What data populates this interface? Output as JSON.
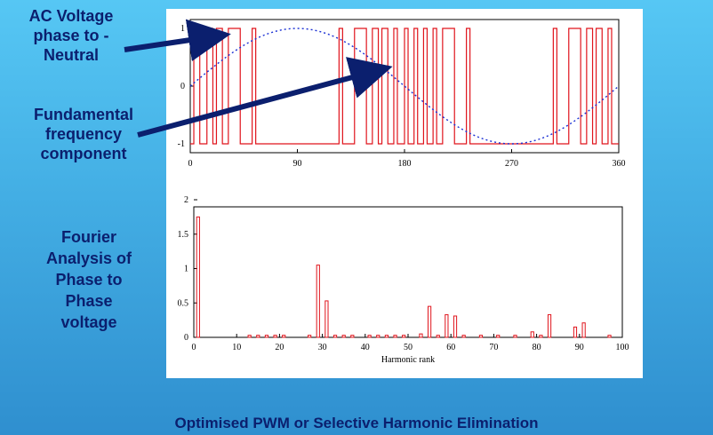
{
  "annotations": {
    "ac_voltage": [
      "AC Voltage",
      "phase to -",
      "Neutral"
    ],
    "fundamental": [
      "Fundamental",
      "frequency",
      "component"
    ],
    "fourier": [
      "Fourier",
      "Analysis of",
      "Phase to",
      "Phase",
      "voltage"
    ]
  },
  "footer": "Optimised PWM or Selective Harmonic Elimination",
  "colors": {
    "pwm": "#e0141c",
    "fundamental": "#1a2fd4",
    "arrow": "#0b1f6e",
    "bars": "#e0141c"
  },
  "chart_data": [
    {
      "type": "line",
      "title": "",
      "xlabel": "",
      "ylabel": "",
      "xlim": [
        0,
        360
      ],
      "ylim": [
        -1,
        1
      ],
      "xticks": [
        "0",
        "90",
        "180",
        "270",
        "360"
      ],
      "yticks": [
        "1",
        "0",
        "-1"
      ],
      "series": [
        {
          "style": "step",
          "color": "#e0141c",
          "transitions": [
            [
              0,
              -1
            ],
            [
              3,
              1
            ],
            [
              8,
              -1
            ],
            [
              14,
              1
            ],
            [
              19,
              -1
            ],
            [
              22,
              1
            ],
            [
              27,
              -1
            ],
            [
              32,
              1
            ],
            [
              42,
              -1
            ],
            [
              52,
              1
            ],
            [
              55,
              -1
            ],
            [
              125,
              1
            ],
            [
              128,
              -1
            ],
            [
              138,
              1
            ],
            [
              148,
              -1
            ],
            [
              153,
              1
            ],
            [
              158,
              -1
            ],
            [
              161,
              1
            ],
            [
              166,
              -1
            ],
            [
              171,
              1
            ],
            [
              174,
              -1
            ],
            [
              180,
              1
            ],
            [
              183,
              -1
            ],
            [
              188,
              1
            ],
            [
              191,
              -1
            ],
            [
              196,
              1
            ],
            [
              199,
              -1
            ],
            [
              204,
              1
            ],
            [
              207,
              -1
            ],
            [
              212,
              1
            ],
            [
              222,
              -1
            ],
            [
              232,
              1
            ],
            [
              235,
              -1
            ],
            [
              305,
              1
            ],
            [
              308,
              -1
            ],
            [
              318,
              1
            ],
            [
              328,
              -1
            ],
            [
              333,
              1
            ],
            [
              338,
              -1
            ],
            [
              341,
              1
            ],
            [
              346,
              -1
            ],
            [
              351,
              1
            ],
            [
              354,
              -1
            ],
            [
              360,
              -1
            ]
          ]
        },
        {
          "style": "dotted",
          "color": "#1a2fd4",
          "function": "sin",
          "amplitude": 1,
          "period": 360
        }
      ]
    },
    {
      "type": "bar",
      "title": "",
      "xlabel": "Harmonic rank",
      "ylabel": "",
      "xlim": [
        0,
        100
      ],
      "ylim": [
        0,
        2
      ],
      "xticks": [
        "0",
        "10",
        "20",
        "30",
        "40",
        "50",
        "60",
        "70",
        "80",
        "90",
        "100"
      ],
      "yticks": [
        "2",
        "1.5",
        "1",
        "0.5",
        "0"
      ],
      "x": [
        1,
        13,
        15,
        17,
        19,
        21,
        27,
        29,
        31,
        33,
        35,
        37,
        41,
        43,
        45,
        47,
        49,
        53,
        55,
        57,
        59,
        61,
        63,
        67,
        71,
        75,
        79,
        81,
        83,
        89,
        91,
        97
      ],
      "values": [
        1.75,
        0.03,
        0.03,
        0.03,
        0.03,
        0.03,
        0.03,
        1.05,
        0.53,
        0.03,
        0.03,
        0.03,
        0.03,
        0.03,
        0.03,
        0.03,
        0.03,
        0.05,
        0.45,
        0.03,
        0.33,
        0.31,
        0.03,
        0.03,
        0.03,
        0.03,
        0.08,
        0.03,
        0.33,
        0.15,
        0.21,
        0.03
      ]
    }
  ]
}
